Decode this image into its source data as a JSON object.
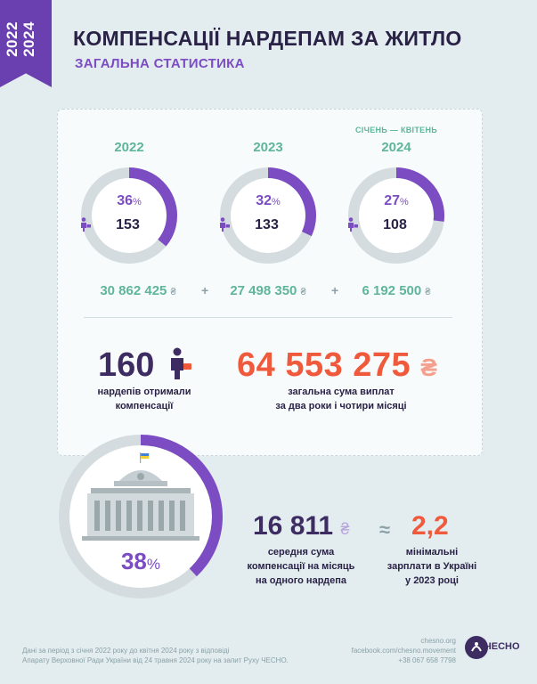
{
  "ribbon": {
    "year_start": "2022",
    "year_end": "2024"
  },
  "header": {
    "title": "КОМПЕНСАЦІЇ НАРДЕПАМ ЗА ЖИТЛО",
    "subtitle": "ЗАГАЛЬНА СТАТИСТИКА"
  },
  "years": [
    {
      "year": "2022",
      "period": "",
      "percent": "36",
      "percent_value": 36,
      "count": "153",
      "amount": "30 862 425"
    },
    {
      "year": "2023",
      "period": "",
      "percent": "32",
      "percent_value": 32,
      "count": "133",
      "amount": "27 498 350"
    },
    {
      "year": "2024",
      "period": "СІЧЕНЬ — КВІТЕНЬ",
      "percent": "27",
      "percent_value": 27,
      "count": "108",
      "amount": "6 192 500"
    }
  ],
  "symbols": {
    "percent": "%",
    "currency": "₴",
    "plus": "+",
    "approx": "≈"
  },
  "totals": {
    "deputies": "160",
    "deputies_label_1": "нардепів отримали",
    "deputies_label_2": "компенсації",
    "sum": "64 553 275",
    "sum_label_1": "загальна сума виплат",
    "sum_label_2": "за два роки і чотири місяці"
  },
  "share": {
    "percent": "38",
    "percent_value": 38
  },
  "average": {
    "value": "16 811",
    "label_1": "середня сума",
    "label_2": "компенсації на місяць",
    "label_3": "на одного нардепа"
  },
  "min_wage": {
    "value": "2,2",
    "label_1": "мінімальні",
    "label_2": "зарплати в Україні",
    "label_3": "у 2023 році"
  },
  "footer": {
    "note_1": "Дані за період з січня 2022 року до квітня 2024 року з відповіді",
    "note_2": "Апарату Верховної Ради України від 24 травня 2024 року на запит Руху ЧЕСНО.",
    "site": "chesno.org",
    "facebook": "facebook.com/chesno.movement",
    "phone": "+38 067 658 7798",
    "logo": "ЧЕСНО"
  },
  "colors": {
    "accent": "#7b4cc2",
    "ring_track": "#d4dcdf",
    "highlight": "#f05a3c",
    "green": "#5eb59a"
  },
  "icons": [
    "person-with-bag-icon",
    "parliament-building-icon",
    "chesno-logo-icon"
  ]
}
